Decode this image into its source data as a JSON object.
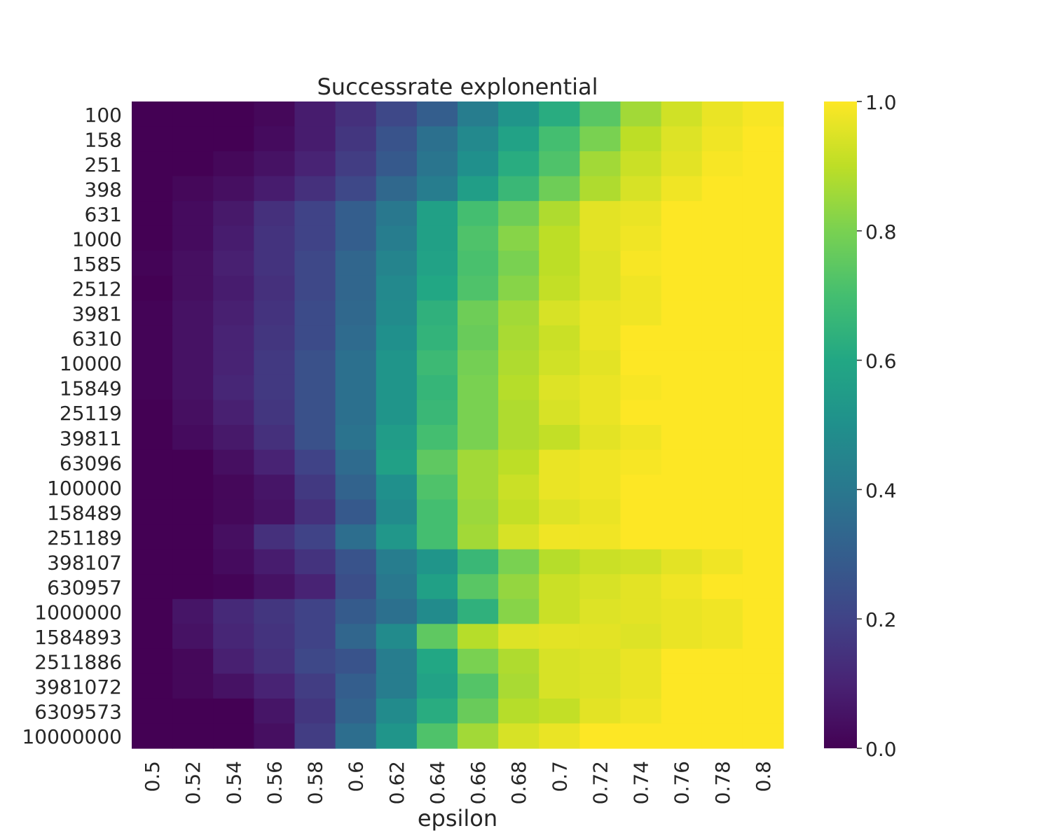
{
  "chart_data": {
    "type": "heatmap",
    "title": "Successrate explonential",
    "xlabel": "epsilon",
    "ylabel": "",
    "x": [
      "0.5",
      "0.52",
      "0.54",
      "0.56",
      "0.58",
      "0.6",
      "0.62",
      "0.64",
      "0.66",
      "0.68",
      "0.7",
      "0.72",
      "0.74",
      "0.76",
      "0.78",
      "0.8"
    ],
    "y": [
      "100",
      "158",
      "251",
      "398",
      "631",
      "1000",
      "1585",
      "2512",
      "3981",
      "6310",
      "10000",
      "15849",
      "25119",
      "39811",
      "63096",
      "100000",
      "158489",
      "251189",
      "398107",
      "630957",
      "1000000",
      "1584893",
      "2511886",
      "3981072",
      "6309573",
      "10000000"
    ],
    "values": [
      [
        0.0,
        0.0,
        0.0,
        0.02,
        0.08,
        0.14,
        0.22,
        0.3,
        0.42,
        0.52,
        0.62,
        0.74,
        0.86,
        0.93,
        0.97,
        0.99
      ],
      [
        0.0,
        0.0,
        0.0,
        0.03,
        0.08,
        0.16,
        0.26,
        0.37,
        0.47,
        0.58,
        0.7,
        0.8,
        0.9,
        0.95,
        0.98,
        1.0
      ],
      [
        0.0,
        0.0,
        0.02,
        0.05,
        0.1,
        0.18,
        0.28,
        0.39,
        0.5,
        0.62,
        0.72,
        0.86,
        0.92,
        0.96,
        0.99,
        1.0
      ],
      [
        0.0,
        0.02,
        0.04,
        0.08,
        0.14,
        0.22,
        0.34,
        0.42,
        0.56,
        0.67,
        0.78,
        0.88,
        0.94,
        0.98,
        1.0,
        1.0
      ],
      [
        0.0,
        0.03,
        0.07,
        0.14,
        0.2,
        0.3,
        0.4,
        0.57,
        0.7,
        0.78,
        0.88,
        0.96,
        0.97,
        1.0,
        1.0,
        1.0
      ],
      [
        0.0,
        0.03,
        0.08,
        0.15,
        0.2,
        0.3,
        0.42,
        0.57,
        0.72,
        0.82,
        0.9,
        0.96,
        0.98,
        1.0,
        1.0,
        1.0
      ],
      [
        0.01,
        0.04,
        0.09,
        0.15,
        0.22,
        0.33,
        0.45,
        0.58,
        0.71,
        0.8,
        0.9,
        0.95,
        0.99,
        1.0,
        1.0,
        1.0
      ],
      [
        0.0,
        0.04,
        0.08,
        0.14,
        0.22,
        0.33,
        0.47,
        0.6,
        0.72,
        0.82,
        0.91,
        0.95,
        0.98,
        1.0,
        1.0,
        1.0
      ],
      [
        0.01,
        0.05,
        0.09,
        0.15,
        0.23,
        0.34,
        0.48,
        0.64,
        0.78,
        0.86,
        0.94,
        0.97,
        0.98,
        1.0,
        1.0,
        1.0
      ],
      [
        0.01,
        0.05,
        0.1,
        0.16,
        0.23,
        0.35,
        0.5,
        0.65,
        0.77,
        0.87,
        0.92,
        0.97,
        1.0,
        1.0,
        1.0,
        1.0
      ],
      [
        0.01,
        0.05,
        0.1,
        0.17,
        0.25,
        0.37,
        0.52,
        0.68,
        0.79,
        0.88,
        0.93,
        0.96,
        1.0,
        1.0,
        1.0,
        1.0
      ],
      [
        0.01,
        0.05,
        0.11,
        0.17,
        0.25,
        0.37,
        0.52,
        0.66,
        0.8,
        0.89,
        0.95,
        0.97,
        0.99,
        1.0,
        1.0,
        1.0
      ],
      [
        0.0,
        0.04,
        0.09,
        0.16,
        0.25,
        0.37,
        0.52,
        0.67,
        0.8,
        0.88,
        0.94,
        0.97,
        1.0,
        1.0,
        1.0,
        1.0
      ],
      [
        0.0,
        0.03,
        0.07,
        0.14,
        0.25,
        0.38,
        0.55,
        0.7,
        0.8,
        0.88,
        0.91,
        0.96,
        0.98,
        1.0,
        1.0,
        1.0
      ],
      [
        0.0,
        0.0,
        0.04,
        0.1,
        0.2,
        0.35,
        0.57,
        0.75,
        0.86,
        0.9,
        0.97,
        0.98,
        0.99,
        1.0,
        1.0,
        1.0
      ],
      [
        0.0,
        0.0,
        0.02,
        0.06,
        0.17,
        0.32,
        0.5,
        0.72,
        0.86,
        0.92,
        0.97,
        0.98,
        1.0,
        1.0,
        1.0,
        1.0
      ],
      [
        0.0,
        0.0,
        0.02,
        0.05,
        0.14,
        0.28,
        0.48,
        0.7,
        0.85,
        0.91,
        0.95,
        0.97,
        1.0,
        1.0,
        1.0,
        1.0
      ],
      [
        0.0,
        0.0,
        0.04,
        0.14,
        0.2,
        0.36,
        0.53,
        0.7,
        0.86,
        0.94,
        0.98,
        0.98,
        1.0,
        1.0,
        1.0,
        1.0
      ],
      [
        0.0,
        0.0,
        0.03,
        0.08,
        0.15,
        0.26,
        0.42,
        0.52,
        0.67,
        0.8,
        0.89,
        0.92,
        0.93,
        0.96,
        0.98,
        1.0
      ],
      [
        0.0,
        0.0,
        0.01,
        0.05,
        0.1,
        0.24,
        0.4,
        0.57,
        0.74,
        0.84,
        0.92,
        0.94,
        0.96,
        0.98,
        1.0,
        1.0
      ],
      [
        0.0,
        0.06,
        0.12,
        0.16,
        0.2,
        0.29,
        0.37,
        0.48,
        0.64,
        0.82,
        0.92,
        0.95,
        0.96,
        0.97,
        0.98,
        1.0
      ],
      [
        0.0,
        0.05,
        0.11,
        0.15,
        0.2,
        0.33,
        0.48,
        0.75,
        0.89,
        0.95,
        0.96,
        0.96,
        0.95,
        0.97,
        0.98,
        1.0
      ],
      [
        0.0,
        0.02,
        0.09,
        0.14,
        0.22,
        0.26,
        0.42,
        0.6,
        0.8,
        0.88,
        0.94,
        0.95,
        0.97,
        1.0,
        1.0,
        1.0
      ],
      [
        0.0,
        0.02,
        0.05,
        0.1,
        0.18,
        0.3,
        0.42,
        0.58,
        0.73,
        0.87,
        0.94,
        0.95,
        0.97,
        1.0,
        1.0,
        1.0
      ],
      [
        0.0,
        0.0,
        0.0,
        0.06,
        0.16,
        0.32,
        0.48,
        0.62,
        0.77,
        0.89,
        0.91,
        0.96,
        0.98,
        1.0,
        1.0,
        1.0
      ],
      [
        0.0,
        0.0,
        0.0,
        0.04,
        0.18,
        0.36,
        0.52,
        0.72,
        0.86,
        0.94,
        0.97,
        1.0,
        1.0,
        1.0,
        1.0,
        1.0
      ]
    ],
    "colormap": "viridis",
    "vmin": 0.0,
    "vmax": 1.0,
    "colorbar_ticks": [
      "0.0",
      "0.2",
      "0.4",
      "0.6",
      "0.8",
      "1.0"
    ],
    "colorbar_tick_values": [
      0.0,
      0.2,
      0.4,
      0.6,
      0.8,
      1.0
    ]
  }
}
